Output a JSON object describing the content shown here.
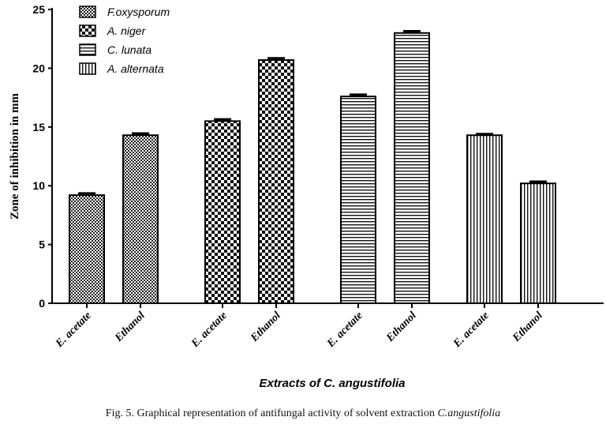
{
  "chart_data": {
    "type": "bar",
    "ylabel": "Zone of inhibition in mm",
    "xlabel": "Extracts of C. angustifolia",
    "ylim": [
      0,
      25
    ],
    "yticks": [
      0,
      5,
      10,
      15,
      20,
      25
    ],
    "legend_position": "top-left",
    "series": [
      {
        "name": "F.oxysporum",
        "pattern": "fine-checker",
        "categories": [
          "E. acetate",
          "Ethanol"
        ],
        "values": [
          9.2,
          14.3
        ],
        "errors": [
          0.15,
          0.15
        ]
      },
      {
        "name": "A. niger",
        "pattern": "coarse-checker",
        "categories": [
          "E. acetate",
          "Ethanol"
        ],
        "values": [
          15.5,
          20.7
        ],
        "errors": [
          0.15,
          0.15
        ]
      },
      {
        "name": "C. lunata",
        "pattern": "horizontal-lines",
        "categories": [
          "E. acetate",
          "Ethanol"
        ],
        "values": [
          17.6,
          23.0
        ],
        "errors": [
          0.15,
          0.15
        ]
      },
      {
        "name": "A. alternata",
        "pattern": "vertical-lines",
        "categories": [
          "E. acetate",
          "Ethanol"
        ],
        "values": [
          14.3,
          10.2
        ],
        "errors": [
          0.1,
          0.15
        ]
      }
    ]
  },
  "caption": {
    "prefix": "Fig. 5. Graphical representation of antifungal activity of solvent extraction ",
    "species": "C.angustifolia"
  }
}
